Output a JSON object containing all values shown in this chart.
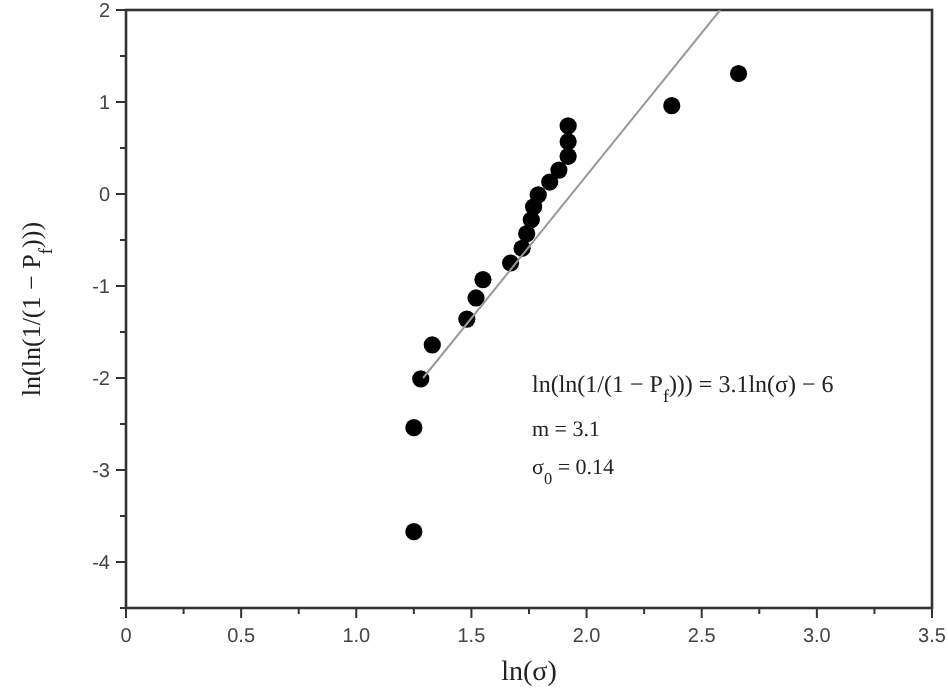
{
  "chart_data": {
    "type": "scatter",
    "xlabel": "ln(σ)",
    "ylabel": "ln(ln(1/(1 − P$_{f}$)))",
    "xlim": [
      0,
      3.5
    ],
    "ylim": [
      -4.5,
      2
    ],
    "xticks": [
      0,
      {
        "value": 0.25,
        "label": null
      },
      0.5,
      {
        "value": 0.75,
        "label": null
      },
      {
        "value": 1,
        "label": "1.0"
      },
      {
        "value": 1.25,
        "label": null
      },
      1.5,
      {
        "value": 1.75,
        "label": null
      },
      {
        "value": 2,
        "label": "2.0"
      },
      {
        "value": 2.25,
        "label": null
      },
      2.5,
      {
        "value": 2.75,
        "label": null
      },
      {
        "value": 3,
        "label": "3.0"
      },
      {
        "value": 3.25,
        "label": null
      },
      3.5
    ],
    "yticks": [
      {
        "value": -4.5,
        "label": null
      },
      -4,
      {
        "value": -3.5,
        "label": null
      },
      -3,
      {
        "value": -2.5,
        "label": null
      },
      -2,
      {
        "value": -1.5,
        "label": null
      },
      -1,
      {
        "value": -0.5,
        "label": null
      },
      0,
      {
        "value": 0.5,
        "label": null
      },
      1,
      {
        "value": 1.5,
        "label": null
      },
      2
    ],
    "grid": false,
    "series": [
      {
        "marker": "circle",
        "color": "#000000",
        "x": [
          1.25,
          1.25,
          1.28,
          1.33,
          1.48,
          1.52,
          1.55,
          1.67,
          1.72,
          1.74,
          1.76,
          1.77,
          1.79,
          1.84,
          1.88,
          1.92,
          1.92,
          1.92,
          2.37,
          2.66
        ],
        "values": [
          -3.67,
          -2.54,
          -2.01,
          -1.64,
          -1.36,
          -1.13,
          -0.93,
          -0.75,
          -0.59,
          -0.43,
          -0.28,
          -0.14,
          -0.01,
          0.13,
          0.26,
          0.41,
          0.57,
          0.74,
          0.96,
          1.31
        ]
      },
      {
        "type": "line",
        "color": "#999999",
        "x": [
          1.29,
          2.58
        ],
        "values": [
          -2.0,
          2.0
        ]
      }
    ],
    "annotations": [
      "ln(ln(1/(1 − P$_{f}$))) = 3.1ln(σ) − 6",
      "m = 3.1",
      "σ$_{0}$ = 0.14"
    ]
  }
}
